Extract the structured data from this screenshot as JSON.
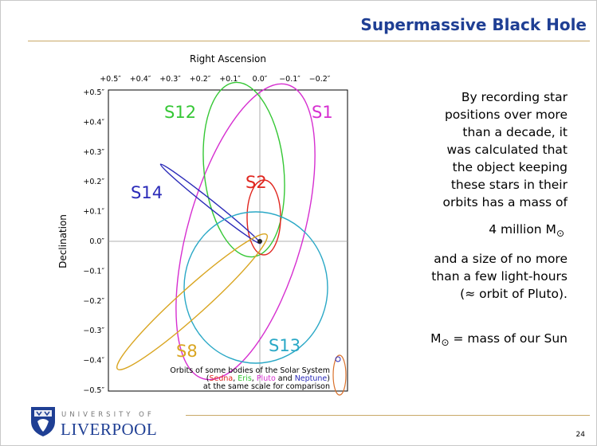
{
  "header": {
    "title": "Supermassive Black Hole"
  },
  "figure": {
    "x_axis_label": "Right Ascension",
    "y_axis_label": "Declination",
    "x_ticks": [
      "+0.5″",
      "+0.4″",
      "+0.3″",
      "+0.2″",
      "+0.1″",
      "0.0″",
      "−0.1″",
      "−0.2″"
    ],
    "y_ticks": [
      "+0.5″",
      "+0.4″",
      "+0.3″",
      "+0.2″",
      "+0.1″",
      "0.0″",
      "−0.1″",
      "−0.2″",
      "−0.3″",
      "−0.4″",
      "−0.5″"
    ],
    "orbit_labels": [
      "S12",
      "S1",
      "S2",
      "S14",
      "S13",
      "S8"
    ],
    "legend": {
      "line1": "Orbits of some bodies of the Solar System",
      "line2": [
        "(",
        "Sedna",
        ", ",
        "Eris",
        ", ",
        "Pluto",
        " and ",
        "Neptune",
        ")"
      ],
      "line3": "at the same scale for comparison"
    }
  },
  "text": {
    "paragraph1": [
      "By recording star",
      "positions over more",
      "than a decade, it",
      "was calculated that",
      "the object keeping",
      "these stars in their",
      "orbits has a mass of"
    ],
    "mass": {
      "text": "4 million M",
      "symbol": "⊙"
    },
    "paragraph2": [
      "and a size of no more",
      "than a few light-hours",
      "(≈ orbit of Pluto)."
    ],
    "definition": {
      "symbol_letter": "M",
      "symbol": "⊙",
      "text": " = mass of our Sun"
    }
  },
  "footer": {
    "university_of": "UNIVERSITY OF",
    "university_name": "LIVERPOOL",
    "page_number": "24"
  }
}
